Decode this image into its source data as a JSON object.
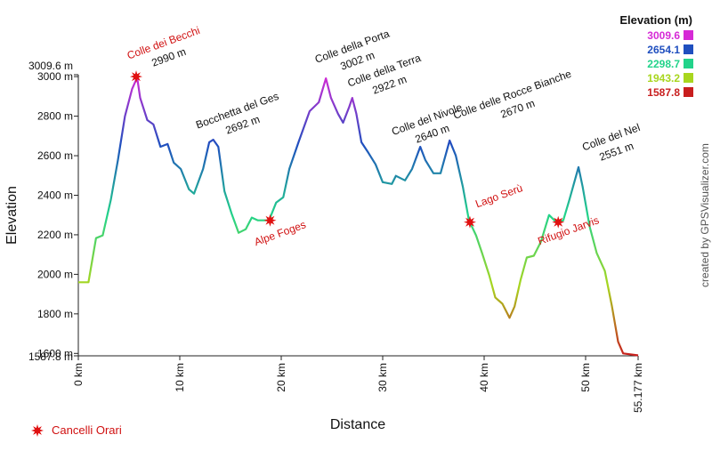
{
  "chart_data": {
    "type": "line",
    "xlabel": "Distance",
    "ylabel": "Elevation",
    "credit": "created by GPSVisualizer.com",
    "x": [
      0,
      1.0,
      1.75,
      2.4,
      3.2,
      3.9,
      4.6,
      5.3,
      5.8,
      6.1,
      6.8,
      7.4,
      8.1,
      8.8,
      9.4,
      10.1,
      10.9,
      11.4,
      12.3,
      12.9,
      13.3,
      13.8,
      14.4,
      15.1,
      15.8,
      16.5,
      17.1,
      17.7,
      18.8,
      19.5,
      20.2,
      20.8,
      21.7,
      22.8,
      23.7,
      24.4,
      24.9,
      25.6,
      26.1,
      26.7,
      27.0,
      27.4,
      27.9,
      28.6,
      29.3,
      30.0,
      30.9,
      31.3,
      32.2,
      32.9,
      33.7,
      34.2,
      35.0,
      35.7,
      36.6,
      37.2,
      37.9,
      38.5,
      39.2,
      39.8,
      40.5,
      41.1,
      41.8,
      42.5,
      43.0,
      43.6,
      44.2,
      44.9,
      45.6,
      46.4,
      47.1,
      47.8,
      48.4,
      49.3,
      49.7,
      50.4,
      51.1,
      51.9,
      52.6,
      53.2,
      53.7,
      55.177
    ],
    "values": [
      1960,
      1960,
      2183,
      2197,
      2376,
      2578,
      2800,
      2937,
      2995,
      2892,
      2780,
      2758,
      2645,
      2659,
      2565,
      2533,
      2430,
      2408,
      2533,
      2668,
      2681,
      2645,
      2420,
      2309,
      2210,
      2228,
      2287,
      2273,
      2273,
      2363,
      2390,
      2533,
      2668,
      2825,
      2870,
      2991,
      2892,
      2812,
      2767,
      2847,
      2892,
      2812,
      2668,
      2614,
      2556,
      2466,
      2457,
      2498,
      2475,
      2533,
      2645,
      2578,
      2511,
      2511,
      2677,
      2601,
      2444,
      2273,
      2197,
      2107,
      1995,
      1883,
      1851,
      1780,
      1838,
      1973,
      2085,
      2094,
      2165,
      2300,
      2264,
      2273,
      2376,
      2542,
      2444,
      2242,
      2107,
      2017,
      1838,
      1659,
      1600,
      1590
    ],
    "xlim": [
      0,
      55.177
    ],
    "ylim": [
      1587.8,
      3009.6
    ],
    "xticks": [
      {
        "value": 0,
        "label": "0 km"
      },
      {
        "value": 10,
        "label": "10 km"
      },
      {
        "value": 20,
        "label": "20 km"
      },
      {
        "value": 30,
        "label": "30 km"
      },
      {
        "value": 40,
        "label": "40 km"
      },
      {
        "value": 50,
        "label": "50 km"
      },
      {
        "value": 55.177,
        "label": "55.177 km"
      }
    ],
    "yticks": [
      {
        "value": 1587.8,
        "label": "1587.8 m"
      },
      {
        "value": 1600,
        "label": "1600 m"
      },
      {
        "value": 1800,
        "label": "1800 m"
      },
      {
        "value": 2000,
        "label": "2000 m"
      },
      {
        "value": 2200,
        "label": "2200 m"
      },
      {
        "value": 2400,
        "label": "2400 m"
      },
      {
        "value": 2600,
        "label": "2600 m"
      },
      {
        "value": 2800,
        "label": "2800 m"
      },
      {
        "value": 3000,
        "label": "3000 m"
      },
      {
        "value": 3009.6,
        "label": "3009.6 m"
      }
    ],
    "color_legend": {
      "title": "Elevation (m)",
      "stops": [
        {
          "value": 3009.6,
          "color": "#d62ad6"
        },
        {
          "value": 2654.1,
          "color": "#1f4fbf"
        },
        {
          "value": 2298.7,
          "color": "#22d38a"
        },
        {
          "value": 1943.2,
          "color": "#a8d61e"
        },
        {
          "value": 1587.8,
          "color": "#c81e1e"
        }
      ]
    },
    "peaks": [
      {
        "name": "Colle dei Becchi",
        "elevation": "2990 m"
      },
      {
        "name": "Bocchetta del Ges",
        "elevation": "2692 m"
      },
      {
        "name": "Colle della Porta",
        "elevation": "3002 m"
      },
      {
        "name": "Colle della Terra",
        "elevation": "2922 m"
      },
      {
        "name": "Colle del Nivole",
        "elevation": "2640 m"
      },
      {
        "name": "Colle delle Rocce Bianche",
        "elevation": "2670 m"
      },
      {
        "name": "Colle del Nel",
        "elevation": "2551 m"
      }
    ],
    "markers": {
      "name": "Cancelli Orari",
      "color": "#e01010",
      "points": [
        {
          "x": 5.7,
          "y": 3000
        },
        {
          "label": "Alpe Foges",
          "x": 18.9,
          "y": 2273
        },
        {
          "label": "Lago Serù",
          "x": 38.6,
          "y": 2264
        },
        {
          "label": "Rifugio Jarvis",
          "x": 47.3,
          "y": 2264
        }
      ]
    }
  }
}
